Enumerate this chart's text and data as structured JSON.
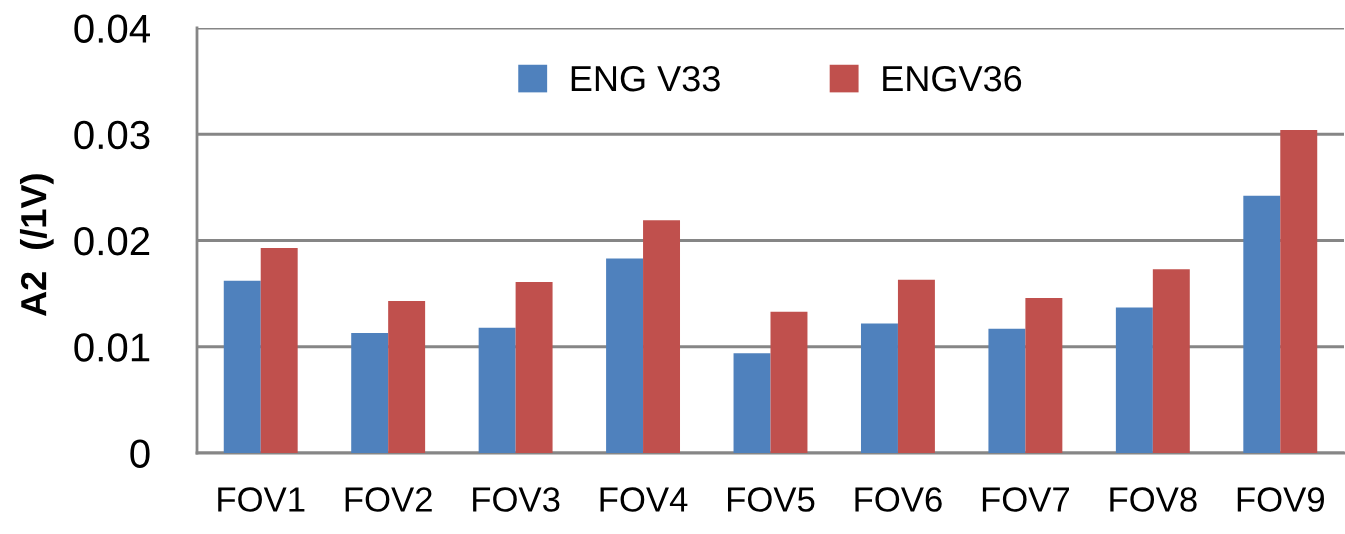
{
  "chart_data": {
    "type": "bar",
    "ylabel": "A2  (/1V)",
    "categories": [
      "FOV1",
      "FOV2",
      "FOV3",
      "FOV4",
      "FOV5",
      "FOV6",
      "FOV7",
      "FOV8",
      "FOV9"
    ],
    "series": [
      {
        "name": "ENG V33",
        "color": "#4f81bd",
        "values": [
          0.0162,
          0.0113,
          0.0118,
          0.0183,
          0.0094,
          0.0122,
          0.0117,
          0.0137,
          0.0242
        ]
      },
      {
        "name": "ENGV36",
        "color": "#c0504d",
        "values": [
          0.0193,
          0.0143,
          0.0161,
          0.0219,
          0.0133,
          0.0163,
          0.0146,
          0.0173,
          0.0304
        ]
      }
    ],
    "ylim": [
      0,
      0.04
    ],
    "yticks": [
      0,
      0.01,
      0.02,
      0.03,
      0.04
    ],
    "grid": "y",
    "legend": "top"
  }
}
